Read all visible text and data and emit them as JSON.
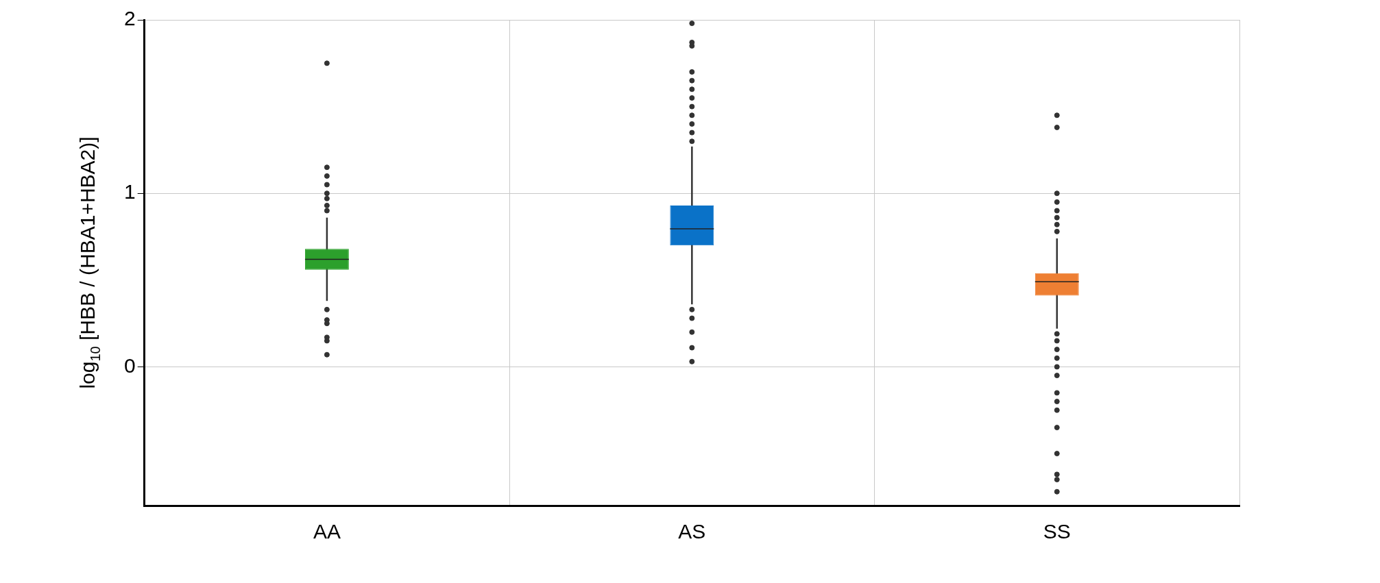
{
  "chart_data": {
    "type": "box",
    "ylabel": "log$_{10}$ [HBB / (HBA1+HBA2)]",
    "categories": [
      "AA",
      "AS",
      "SS"
    ],
    "colors": [
      "#2ca02c",
      "#0a72c8",
      "#ee7f33"
    ],
    "boxes": [
      {
        "low": 0.38,
        "q1": 0.56,
        "median": 0.62,
        "q3": 0.68,
        "high": 0.86,
        "outliers": [
          0.9,
          0.93,
          0.97,
          1.0,
          1.05,
          1.1,
          1.15,
          1.75,
          0.33,
          0.27,
          0.25,
          0.17,
          0.15,
          0.07
        ]
      },
      {
        "low": 0.36,
        "q1": 0.7,
        "median": 0.795,
        "q3": 0.93,
        "high": 1.27,
        "outliers": [
          1.3,
          1.35,
          1.4,
          1.45,
          1.5,
          1.55,
          1.6,
          1.65,
          1.7,
          1.85,
          1.87,
          1.98,
          0.33,
          0.28,
          0.2,
          0.11,
          0.03
        ]
      },
      {
        "low": 0.22,
        "q1": 0.41,
        "median": 0.49,
        "q3": 0.54,
        "high": 0.74,
        "outliers": [
          0.78,
          0.82,
          0.86,
          0.9,
          0.95,
          1.0,
          1.38,
          1.45,
          0.19,
          0.15,
          0.1,
          0.05,
          0.0,
          -0.05,
          -0.15,
          -0.2,
          -0.25,
          -0.35,
          -0.5,
          -0.62,
          -0.65,
          -0.72
        ]
      }
    ],
    "ylim": [
      -0.8,
      2
    ],
    "yticks": [
      0,
      1,
      2
    ],
    "grid": true
  }
}
